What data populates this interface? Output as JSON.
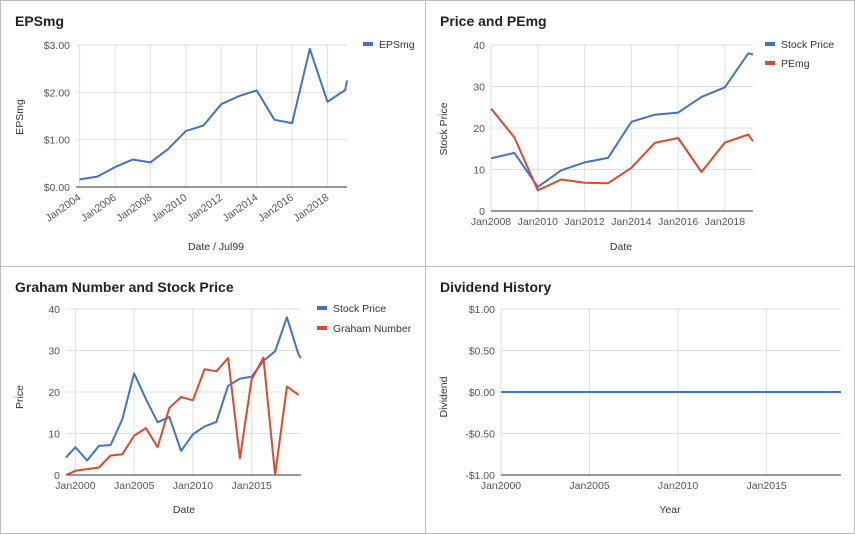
{
  "colors": {
    "blue": "#4472c4",
    "red": "#dc4a2e",
    "grid": "#e0e0e0",
    "axis": "#333333",
    "tick": "#555555"
  },
  "chart_data": [
    {
      "type": "line",
      "title": "EPSmg",
      "xlabel": "Date / Jul99",
      "ylabel": "EPSmg",
      "x_ticks": [
        "Jan2004",
        "Jan2006",
        "Jan2008",
        "Jan2010",
        "Jan2012",
        "Jan2014",
        "Jan2016",
        "Jan2018"
      ],
      "y_ticks": [
        "$0.00",
        "$1.00",
        "$2.00",
        "$3.00"
      ],
      "xlim": [
        2003.8,
        2019.1
      ],
      "ylim": [
        0,
        3
      ],
      "legend_position": "top-right",
      "series": [
        {
          "name": "EPSmg",
          "color": "#4472c4",
          "x": [
            2004,
            2005,
            2006,
            2007,
            2008,
            2009,
            2010,
            2011,
            2012,
            2013,
            2014,
            2015,
            2016,
            2017,
            2018,
            2019,
            2019.1
          ],
          "y": [
            0.16,
            0.22,
            0.42,
            0.58,
            0.52,
            0.8,
            1.18,
            1.3,
            1.75,
            1.92,
            2.04,
            1.42,
            1.35,
            2.92,
            1.8,
            2.05,
            2.25
          ]
        }
      ]
    },
    {
      "type": "line",
      "title": "Price and PEmg",
      "xlabel": "Date",
      "ylabel": "Stock Price",
      "x_ticks": [
        "Jan2008",
        "Jan2010",
        "Jan2012",
        "Jan2014",
        "Jan2016",
        "Jan2018"
      ],
      "y_ticks": [
        "0",
        "10",
        "20",
        "30",
        "40"
      ],
      "xlim": [
        2008,
        2019.2
      ],
      "ylim": [
        0,
        40
      ],
      "legend_position": "top-right",
      "series": [
        {
          "name": "Stock Price",
          "color": "#4472c4",
          "x": [
            2008,
            2009,
            2010,
            2011,
            2012,
            2013,
            2014,
            2015,
            2016,
            2017,
            2018,
            2019,
            2019.2
          ],
          "y": [
            12.7,
            14.0,
            5.8,
            9.8,
            11.7,
            12.8,
            21.5,
            23.2,
            23.7,
            27.5,
            29.8,
            38.0,
            37.7
          ]
        },
        {
          "name": "PEmg",
          "color": "#dc4a2e",
          "x": [
            2008,
            2009,
            2010,
            2011,
            2012,
            2013,
            2014,
            2015,
            2016,
            2017,
            2018,
            2019,
            2019.2
          ],
          "y": [
            24.7,
            17.7,
            5.0,
            7.6,
            6.8,
            6.7,
            10.4,
            16.4,
            17.6,
            9.4,
            16.5,
            18.4,
            16.8
          ]
        }
      ]
    },
    {
      "type": "line",
      "title": "Graham Number and Stock Price",
      "xlabel": "Date",
      "ylabel": "Price",
      "x_ticks": [
        "Jan2000",
        "Jan2005",
        "Jan2010",
        "Jan2015"
      ],
      "y_ticks": [
        "0",
        "10",
        "20",
        "30",
        "40"
      ],
      "xlim": [
        1999.2,
        2019.2
      ],
      "ylim": [
        0,
        40
      ],
      "legend_position": "top-right",
      "series": [
        {
          "name": "Stock Price",
          "color": "#4472c4",
          "x": [
            1999.2,
            2000,
            2001,
            2002,
            2003,
            2004,
            2005,
            2006,
            2007,
            2008,
            2009,
            2010,
            2011,
            2012,
            2013,
            2014,
            2015,
            2016,
            2017,
            2018,
            2019,
            2019.2
          ],
          "y": [
            4.2,
            6.7,
            3.5,
            7.0,
            7.2,
            13.5,
            24.5,
            18.3,
            12.7,
            14.0,
            5.8,
            9.8,
            11.7,
            12.8,
            21.5,
            23.2,
            23.7,
            27.5,
            29.8,
            38.0,
            29.0,
            28.2
          ]
        },
        {
          "name": "Graham Number",
          "color": "#dc4a2e",
          "x": [
            1999.2,
            2000,
            2002,
            2003,
            2004,
            2005,
            2006,
            2007,
            2008,
            2009,
            2010,
            2011,
            2012,
            2013,
            2014,
            2015,
            2016,
            2017,
            2018,
            2019
          ],
          "y": [
            0,
            1.0,
            1.8,
            4.7,
            5.0,
            9.5,
            11.3,
            6.7,
            16.2,
            18.8,
            18.0,
            25.5,
            25.0,
            28.2,
            4.0,
            23.0,
            28.3,
            0,
            21.3,
            19.3
          ]
        }
      ]
    },
    {
      "type": "line",
      "title": "Dividend History",
      "xlabel": "Year",
      "ylabel": "Dividend",
      "x_ticks": [
        "Jan2000",
        "Jan2005",
        "Jan2010",
        "Jan2015"
      ],
      "y_ticks": [
        "-$1.00",
        "-$0.50",
        "$0.00",
        "$0.50",
        "$1.00"
      ],
      "xlim": [
        2000,
        2019.2
      ],
      "ylim": [
        -1,
        1
      ],
      "legend_position": "none",
      "series": [
        {
          "color": "#4472c4",
          "x": [
            2000,
            2019.2
          ],
          "y": [
            0,
            0
          ]
        }
      ]
    }
  ]
}
